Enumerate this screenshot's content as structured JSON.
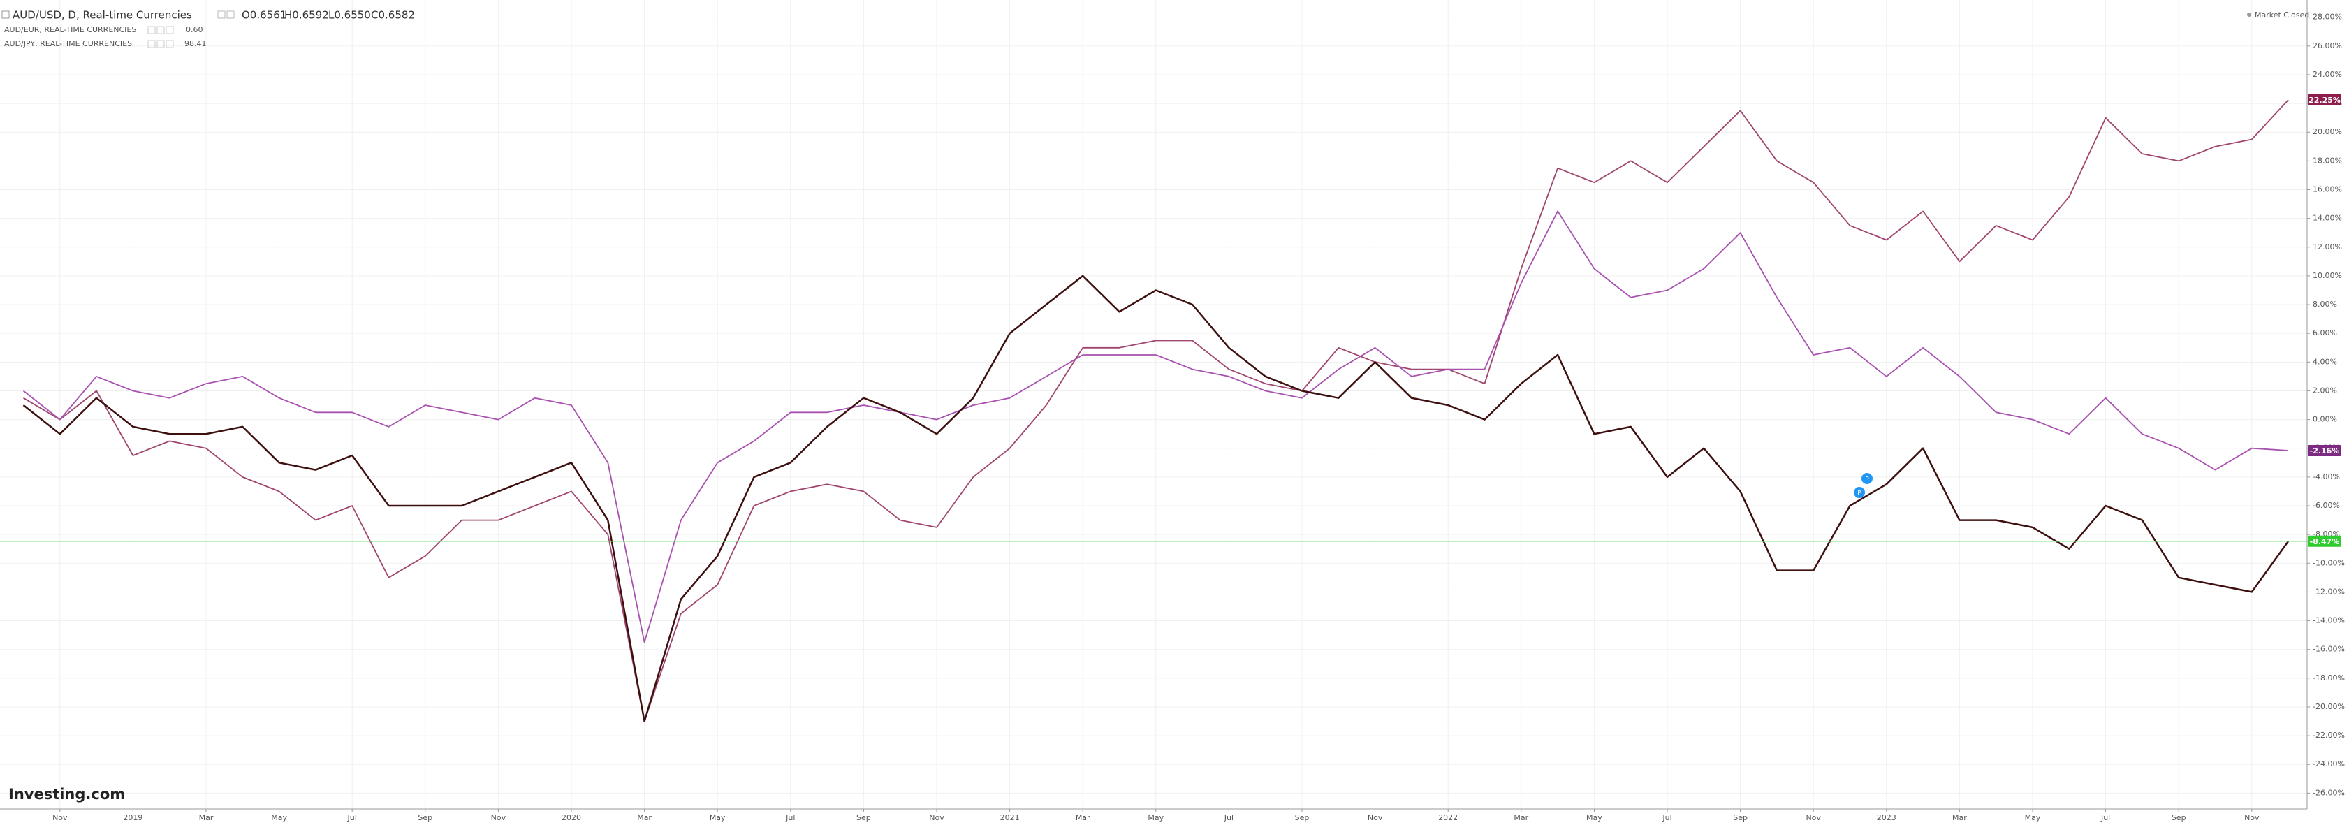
{
  "chart_data": {
    "type": "line",
    "title": "AUD/USD, D, Real-time Currencies",
    "ohlc": [
      "O0.6561",
      "H0.6592",
      "L0.6550",
      "C0.6582"
    ],
    "status": "Market Closed",
    "logo": "Investing.com",
    "categories": [
      null,
      "Nov",
      null,
      "2019",
      null,
      "Mar",
      null,
      "May",
      null,
      "Jul",
      null,
      "Sep",
      null,
      "Nov",
      null,
      "2020",
      null,
      "Mar",
      null,
      "May",
      null,
      "Jul",
      null,
      "Sep",
      null,
      "Nov",
      null,
      "2021",
      null,
      "Mar",
      null,
      "May",
      null,
      "Jul",
      null,
      "Sep",
      null,
      "Nov",
      null,
      "2022",
      null,
      "Mar",
      null,
      "May",
      null,
      "Jul",
      null,
      "Sep",
      null,
      "Nov",
      null,
      "2023",
      null,
      "Mar",
      null,
      "May",
      null,
      "Jul",
      null,
      "Sep",
      null,
      "Nov",
      null
    ],
    "ylim": [
      -27.1,
      29.2
    ],
    "yticks": [
      {
        "value": 28,
        "label": "28.00%"
      },
      {
        "value": 26,
        "label": "26.00%"
      },
      {
        "value": 24,
        "label": "24.00%"
      },
      {
        "value": 22,
        "label": "22.00%"
      },
      {
        "value": 20,
        "label": "20.00%"
      },
      {
        "value": 18,
        "label": "18.00%"
      },
      {
        "value": 16,
        "label": "16.00%"
      },
      {
        "value": 14,
        "label": "14.00%"
      },
      {
        "value": 12,
        "label": "12.00%"
      },
      {
        "value": 10,
        "label": "10.00%"
      },
      {
        "value": 8,
        "label": "8.00%"
      },
      {
        "value": 6,
        "label": "6.00%"
      },
      {
        "value": 4,
        "label": "4.00%"
      },
      {
        "value": 2,
        "label": "2.00%"
      },
      {
        "value": 0,
        "label": "0.00%"
      },
      {
        "value": -2,
        "label": "-2.00%"
      },
      {
        "value": -4,
        "label": "-4.00%"
      },
      {
        "value": -6,
        "label": "-6.00%"
      },
      {
        "value": -8,
        "label": "-8.00%"
      },
      {
        "value": -10,
        "label": "-10.00%"
      },
      {
        "value": -12,
        "label": "-12.00%"
      },
      {
        "value": -14,
        "label": "-14.00%"
      },
      {
        "value": -16,
        "label": "-16.00%"
      },
      {
        "value": -18,
        "label": "-18.00%"
      },
      {
        "value": -20,
        "label": "-20.00%"
      },
      {
        "value": -22,
        "label": "-22.00%"
      },
      {
        "value": -24,
        "label": "-24.00%"
      },
      {
        "value": -26,
        "label": "-26.00%"
      }
    ],
    "grid": true,
    "series": [
      {
        "name": "AUD/USD, D, Real-time Currencies",
        "color": "#3d0f0f",
        "label_color": "#2ecc2e",
        "price_line": true,
        "values": [
          1,
          -1,
          1.5,
          -0.5,
          -1,
          -1,
          -0.5,
          -3,
          -3.5,
          -2.5,
          -6,
          -6,
          -6,
          -5,
          -4,
          -3,
          -7,
          -21,
          -12.5,
          -9.5,
          -4,
          -3,
          -0.5,
          1.5,
          0.5,
          -1,
          1.5,
          6,
          8,
          10,
          7.5,
          9,
          8,
          5,
          3,
          2,
          1.5,
          4,
          1.5,
          1,
          0,
          2.5,
          4.5,
          -1,
          -0.5,
          -4,
          -2,
          -5,
          -10.5,
          -10.5,
          -6,
          -4.5,
          -2,
          -7,
          -7,
          -7.5,
          -9,
          -6,
          -7,
          -11,
          -11.5,
          -12,
          -8.47
        ],
        "value_labels": [
          null,
          null,
          null,
          null,
          null,
          null,
          null,
          null,
          null,
          null,
          null,
          null,
          null,
          null,
          null,
          null,
          null,
          null,
          null,
          null,
          null,
          null,
          null,
          null,
          null,
          null,
          null,
          null,
          null,
          null,
          null,
          null,
          null,
          null,
          null,
          null,
          null,
          null,
          null,
          null,
          null,
          null,
          null,
          null,
          null,
          null,
          null,
          null,
          null,
          null,
          null,
          null,
          null,
          null,
          null,
          null,
          null,
          null,
          null,
          null,
          null,
          null,
          "-8.47%"
        ]
      },
      {
        "name": "AUD/EUR, REAL-TIME CURRENCIES",
        "legend_value": "0.60",
        "color": "#a851b0",
        "label_color": "#7d2a82",
        "values": [
          2,
          0,
          3,
          2,
          1.5,
          2.5,
          3,
          1.5,
          0.5,
          0.5,
          -0.5,
          1,
          0.5,
          0,
          1.5,
          1,
          -3,
          -15.5,
          -7,
          -3,
          -1.5,
          0.5,
          0.5,
          1,
          0.5,
          0,
          1,
          1.5,
          3,
          4.5,
          4.5,
          4.5,
          3.5,
          3,
          2,
          1.5,
          3.5,
          5,
          3,
          3.5,
          3.5,
          9.5,
          14.5,
          10.5,
          8.5,
          9,
          10.5,
          13,
          8.5,
          4.5,
          5,
          3,
          5,
          3,
          0.5,
          0,
          -1,
          1.5,
          -1,
          -2,
          -3.5,
          -2,
          -2.16
        ],
        "value_labels": [
          null,
          null,
          null,
          null,
          null,
          null,
          null,
          null,
          null,
          null,
          null,
          null,
          null,
          null,
          null,
          null,
          null,
          null,
          null,
          null,
          null,
          null,
          null,
          null,
          null,
          null,
          null,
          null,
          null,
          null,
          null,
          null,
          null,
          null,
          null,
          null,
          null,
          null,
          null,
          null,
          null,
          null,
          null,
          null,
          null,
          null,
          null,
          null,
          null,
          null,
          null,
          null,
          null,
          null,
          null,
          null,
          null,
          null,
          null,
          null,
          null,
          null,
          "-2.16%"
        ]
      },
      {
        "name": "AUD/JPY, REAL-TIME CURRENCIES",
        "legend_value": "98.41",
        "color": "#a0456f",
        "label_color": "#8e1c4c",
        "values": [
          1.5,
          0,
          2,
          -2.5,
          -1.5,
          -2,
          -4,
          -5,
          -7,
          -6,
          -11,
          -9.5,
          -7,
          -7,
          -6,
          -5,
          -8,
          -21,
          -13.5,
          -11.5,
          -6,
          -5,
          -4.5,
          -5,
          -7,
          -7.5,
          -4,
          -2,
          1,
          5,
          5,
          5.5,
          5.5,
          3.5,
          2.5,
          2,
          5,
          4,
          3.5,
          3.5,
          2.5,
          10.5,
          17.5,
          16.5,
          18,
          16.5,
          19,
          21.5,
          18,
          16.5,
          13.5,
          12.5,
          14.5,
          11,
          13.5,
          12.5,
          15.5,
          21,
          18.5,
          18,
          19,
          19.5,
          22.25
        ],
        "value_labels": [
          null,
          null,
          null,
          null,
          null,
          null,
          null,
          null,
          null,
          null,
          null,
          null,
          null,
          null,
          null,
          null,
          null,
          null,
          null,
          null,
          null,
          null,
          null,
          null,
          null,
          null,
          null,
          null,
          null,
          null,
          null,
          null,
          null,
          null,
          null,
          null,
          null,
          null,
          null,
          null,
          null,
          null,
          null,
          null,
          null,
          null,
          null,
          null,
          null,
          null,
          null,
          null,
          null,
          null,
          null,
          null,
          null,
          null,
          null,
          null,
          null,
          null,
          "22.25%"
        ]
      }
    ]
  }
}
